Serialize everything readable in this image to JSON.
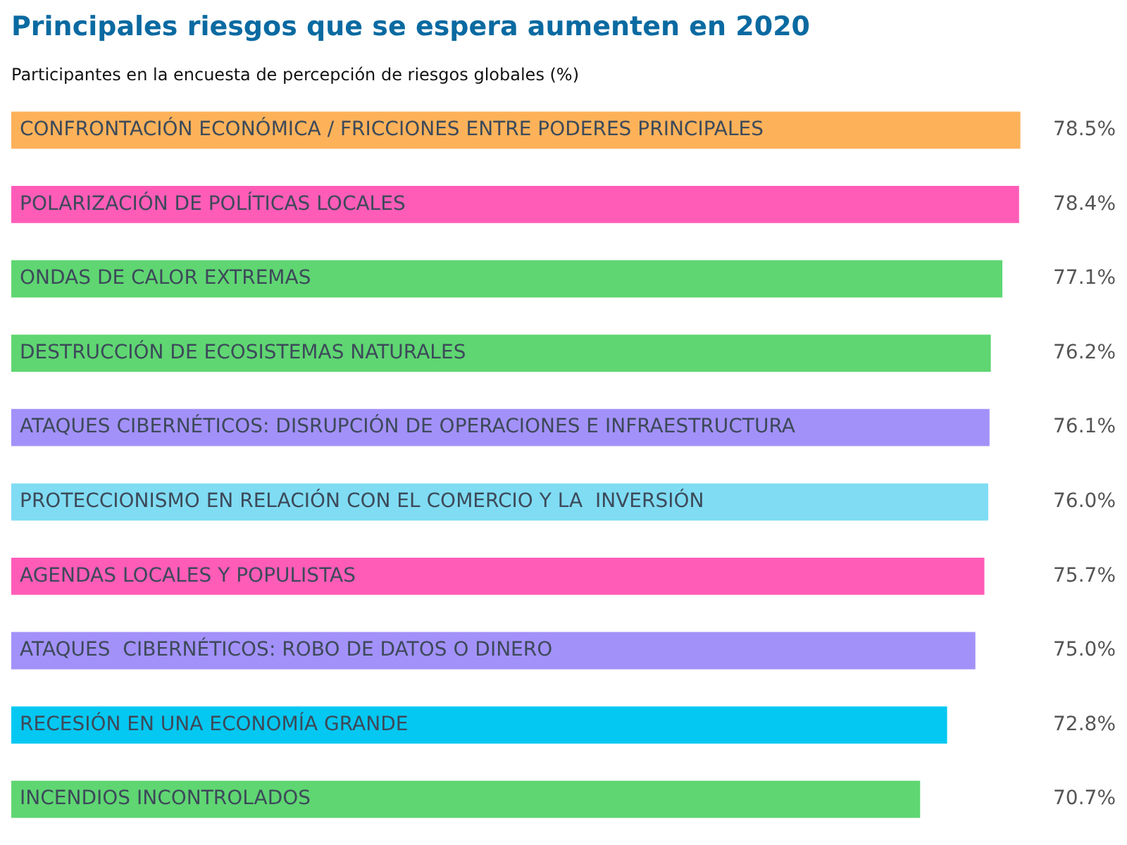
{
  "chart_data": {
    "type": "bar",
    "orientation": "horizontal",
    "title": "Principales riesgos que se espera aumenten en 2020",
    "subtitle": "Participantes en la encuesta de percepción de riesgos globales (%)",
    "categories": [
      "CONFRONTACIÓN ECONÓMICA / FRICCIONES ENTRE PODERES PRINCIPALES",
      "POLARIZACIÓN DE POLÍTICAS LOCALES",
      "ONDAS DE CALOR EXTREMAS",
      "DESTRUCCIÓN DE ECOSISTEMAS NATURALES",
      "ATAQUES CIBERNÉTICOS: DISRUPCIÓN DE OPERACIONES E INFRAESTRUCTURA",
      "PROTECCIONISMO EN RELACIÓN CON EL COMERCIO Y LA  INVERSIÓN",
      "AGENDAS LOCALES Y POPULISTAS",
      "ATAQUES  CIBERNÉTICOS: ROBO DE DATOS O DINERO",
      "RECESIÓN EN UNA ECONOMÍA GRANDE",
      "INCENDIOS INCONTROLADOS"
    ],
    "values": [
      78.5,
      78.4,
      77.1,
      76.2,
      76.1,
      76.0,
      75.7,
      75.0,
      72.8,
      70.7
    ],
    "value_labels": [
      "78.5%",
      "78.4%",
      "77.1%",
      "76.2%",
      "76.1%",
      "76.0%",
      "75.7%",
      "75.0%",
      "72.8%",
      "70.7%"
    ],
    "colors": [
      "#fdb25a",
      "#ff5cb8",
      "#5fd672",
      "#5fd672",
      "#a391fa",
      "#7fdcf3",
      "#ff5cb8",
      "#a391fa",
      "#04c8f2",
      "#5fd672"
    ],
    "legend": false
  }
}
